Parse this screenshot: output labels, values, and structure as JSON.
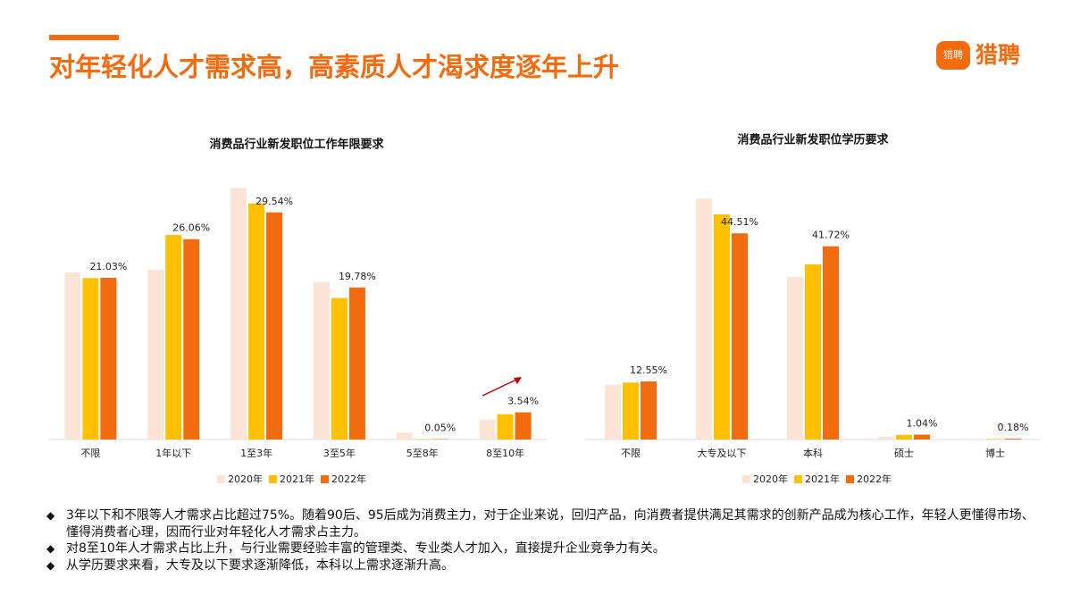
{
  "title": "对年轻化人才需求高，高素质人才渴求度逐年上升",
  "logo": "猎聘",
  "chart_data": [
    {
      "type": "bar",
      "title": "消费品行业新发职位工作年限要求",
      "categories": [
        "不限",
        "1年以下",
        "1至3年",
        "3至5年",
        "5至8年",
        "8至10年"
      ],
      "ylim": [
        0,
        33
      ],
      "series": [
        {
          "name": "2020年",
          "color": "#fbe3d6",
          "values": [
            21.7,
            22.1,
            32.7,
            20.5,
            0.9,
            2.6
          ]
        },
        {
          "name": "2021年",
          "color": "#ffc000",
          "values": [
            21.0,
            26.6,
            30.7,
            18.4,
            0.05,
            3.3
          ]
        },
        {
          "name": "2022年",
          "color": "#f26b0f",
          "values": [
            21.03,
            26.06,
            29.54,
            19.78,
            0.05,
            3.54
          ],
          "value_labels": [
            "21.03%",
            "26.06%",
            "29.54%",
            "19.78%",
            "0.05%",
            "3.54%"
          ]
        }
      ]
    },
    {
      "type": "bar",
      "title": "消费品行业新发职位学历要求",
      "categories": [
        "不限",
        "大专及以下",
        "本科",
        "硕士",
        "博士"
      ],
      "ylim": [
        0,
        54
      ],
      "series": [
        {
          "name": "2020年",
          "color": "#fbe3d6",
          "values": [
            11.8,
            52.0,
            35.1,
            0.6,
            0.1
          ]
        },
        {
          "name": "2021年",
          "color": "#ffc000",
          "values": [
            12.3,
            48.6,
            37.8,
            1.0,
            0.1
          ]
        },
        {
          "name": "2022年",
          "color": "#f26b0f",
          "values": [
            12.55,
            44.51,
            41.72,
            1.04,
            0.18
          ],
          "value_labels": [
            "12.55%",
            "44.51%",
            "41.72%",
            "1.04%",
            "0.18%"
          ]
        }
      ]
    }
  ],
  "bullets": [
    "3年以下和不限等人才需求占比超过75%。随着90后、95后成为消费主力，对于企业来说，回归产品，向消费者提供满足其需求的创新产品成为核心工作，年轻人更懂得市场、懂得消费者心理，因而行业对年轻化人才需求占主力。",
    "对8至10年人才需求占比上升，与行业需要经验丰富的管理类、专业类人才加入，直接提升企业竞争力有关。",
    "从学历要求来看，大专及以下要求逐渐降低，本科以上需求逐渐升高。"
  ]
}
